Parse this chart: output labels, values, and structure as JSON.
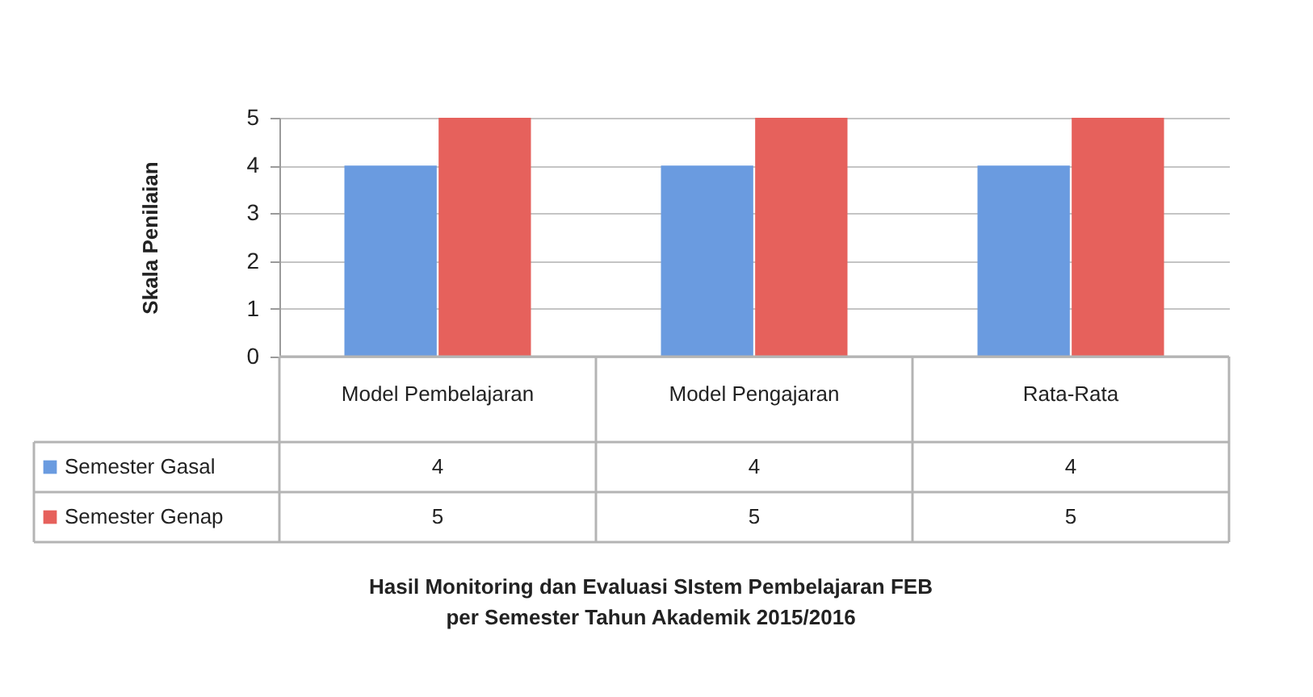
{
  "chart_data": {
    "type": "bar",
    "categories": [
      "Model Pembelajaran",
      "Model Pengajaran",
      "Rata-Rata"
    ],
    "series": [
      {
        "name": "Semester Gasal",
        "color": "#6a9be0",
        "values": [
          4,
          4,
          4
        ]
      },
      {
        "name": "Semester Genap",
        "color": "#e6615c",
        "values": [
          5,
          5,
          5
        ]
      }
    ],
    "ylabel": "Skala Penilaian",
    "annotations": [
      "Hasil Monitoring dan Evaluasi SIstem Pembelajaran FEB\nper Semester Tahun Akademik 2015/2016"
    ],
    "ylim": [
      0,
      5
    ],
    "yticks": [
      0,
      1,
      2,
      3,
      4,
      5
    ],
    "grid": "y",
    "legend": "bottom left",
    "data_labels": true
  }
}
